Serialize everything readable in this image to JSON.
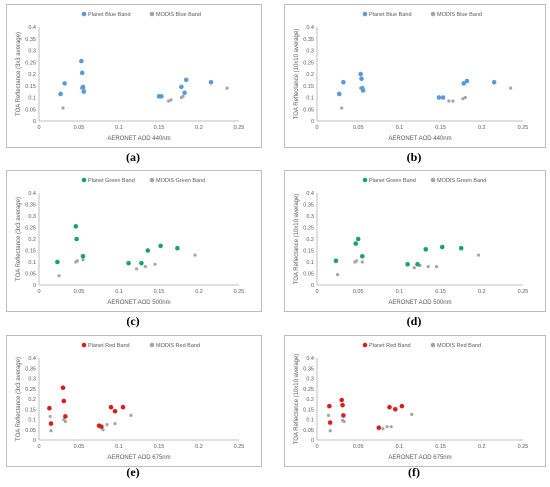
{
  "colors": {
    "blue": "#5b9bd5",
    "green": "#19a463",
    "red": "#d61f1f",
    "grey": "#a5a5a5",
    "axis": "#bfbfbf",
    "text": "#595959"
  },
  "panels": [
    {
      "sub_label": "(a)",
      "ylabel": "TOA Reflectance (3x3 average)",
      "xlabel": "AERONET AOD 440nm",
      "legend": [
        "Planet Blue Band",
        "MODIS Blue Band"
      ]
    },
    {
      "sub_label": "(b)",
      "ylabel": "TOA Reflectance (10x10 average)",
      "xlabel": "AERONET AOD 440nm",
      "legend": [
        "Planet Blue Band",
        "MODIS Blue Band"
      ]
    },
    {
      "sub_label": "(c)",
      "ylabel": "TOA Reflectance (3x3 average)",
      "xlabel": "AERONET AOD 500nm",
      "legend": [
        "Planet Green Band",
        "MODIS Green Band"
      ]
    },
    {
      "sub_label": "(d)",
      "ylabel": "TOA Reflectance (10x10 average)",
      "xlabel": "AERONET AOD 500nm",
      "legend": [
        "Planet Green Band",
        "MODIS Green Band"
      ]
    },
    {
      "sub_label": "(e)",
      "ylabel": "TOA Reflectance (3x3 average)",
      "xlabel": "AERONET AOD 675nm",
      "legend": [
        "Planet Red Band",
        "MODIS Red Band"
      ]
    },
    {
      "sub_label": "(f)",
      "ylabel": "TOA Reflectance (10x10 average)",
      "xlabel": "AERONET AOD 675nm",
      "legend": [
        "Planet Red Band",
        "MODIS Red Band"
      ]
    }
  ],
  "chart_data": [
    {
      "type": "scatter",
      "title": "",
      "xlabel": "AERONET AOD 440nm",
      "ylabel": "TOA Reflectance (3x3 average)",
      "xlim": [
        0,
        0.25
      ],
      "ylim": [
        0,
        0.4
      ],
      "xticks": [
        "0",
        "0.05",
        "0.1",
        "0.15",
        "0.2",
        "0.25"
      ],
      "yticks": [
        "0",
        "0.05",
        "0.1",
        "0.15",
        "0.2",
        "0.25",
        "0.3",
        "0.35",
        "0.4"
      ],
      "grid": false,
      "legend_position": "top",
      "series": [
        {
          "name": "Planet Blue Band",
          "color": "#5b9bd5",
          "x": [
            0.027,
            0.032,
            0.053,
            0.054,
            0.055,
            0.056,
            0.15,
            0.153,
            0.178,
            0.182,
            0.184,
            0.215
          ],
          "y": [
            0.115,
            0.16,
            0.255,
            0.205,
            0.145,
            0.125,
            0.105,
            0.105,
            0.145,
            0.12,
            0.175,
            0.165
          ]
        },
        {
          "name": "MODIS Blue Band",
          "color": "#a5a5a5",
          "x": [
            0.03,
            0.053,
            0.056,
            0.162,
            0.165,
            0.178,
            0.18,
            0.235
          ],
          "y": [
            0.055,
            0.14,
            0.135,
            0.085,
            0.09,
            0.1,
            0.105,
            0.14
          ]
        }
      ]
    },
    {
      "type": "scatter",
      "title": "",
      "xlabel": "AERONET AOD 440nm",
      "ylabel": "TOA Reflectance (10x10 average)",
      "xlim": [
        0,
        0.25
      ],
      "ylim": [
        0,
        0.4
      ],
      "xticks": [
        "0",
        "0.05",
        "0.1",
        "0.15",
        "0.2",
        "0.25"
      ],
      "yticks": [
        "0",
        "0.05",
        "0.1",
        "0.15",
        "0.2",
        "0.25",
        "0.3",
        "0.35",
        "0.4"
      ],
      "grid": false,
      "legend_position": "top",
      "series": [
        {
          "name": "Planet Blue Band",
          "color": "#5b9bd5",
          "x": [
            0.027,
            0.032,
            0.053,
            0.054,
            0.055,
            0.056,
            0.148,
            0.153,
            0.178,
            0.182,
            0.215
          ],
          "y": [
            0.115,
            0.165,
            0.2,
            0.18,
            0.14,
            0.13,
            0.1,
            0.1,
            0.16,
            0.17,
            0.165
          ]
        },
        {
          "name": "MODIS Blue Band",
          "color": "#a5a5a5",
          "x": [
            0.03,
            0.053,
            0.056,
            0.16,
            0.165,
            0.177,
            0.18,
            0.235
          ],
          "y": [
            0.055,
            0.14,
            0.135,
            0.085,
            0.085,
            0.095,
            0.1,
            0.14
          ]
        }
      ]
    },
    {
      "type": "scatter",
      "title": "",
      "xlabel": "AERONET AOD 500nm",
      "ylabel": "TOA Reflectance (3x3 average)",
      "xlim": [
        0,
        0.25
      ],
      "ylim": [
        0,
        0.4
      ],
      "xticks": [
        "0",
        "0.05",
        "0.1",
        "0.15",
        "0.2",
        "0.25"
      ],
      "yticks": [
        "0",
        "0.05",
        "0.1",
        "0.15",
        "0.2",
        "0.25",
        "0.3",
        "0.35",
        "0.4"
      ],
      "grid": false,
      "legend_position": "top",
      "series": [
        {
          "name": "Planet Green Band",
          "color": "#19a463",
          "x": [
            0.023,
            0.046,
            0.047,
            0.055,
            0.112,
            0.128,
            0.136,
            0.152,
            0.173
          ],
          "y": [
            0.1,
            0.255,
            0.2,
            0.125,
            0.095,
            0.095,
            0.15,
            0.17,
            0.16
          ]
        },
        {
          "name": "MODIS Green Band",
          "color": "#a5a5a5",
          "x": [
            0.025,
            0.046,
            0.048,
            0.055,
            0.122,
            0.133,
            0.145,
            0.195
          ],
          "y": [
            0.04,
            0.1,
            0.105,
            0.11,
            0.07,
            0.08,
            0.09,
            0.13
          ]
        }
      ]
    },
    {
      "type": "scatter",
      "title": "",
      "xlabel": "AERONET AOD 500nm",
      "ylabel": "TOA Reflectance (10x10 average)",
      "xlim": [
        0,
        0.25
      ],
      "ylim": [
        0,
        0.4
      ],
      "xticks": [
        "0",
        "0.05",
        "0.1",
        "0.15",
        "0.2",
        "0.25"
      ],
      "yticks": [
        "0",
        "0.05",
        "0.1",
        "0.15",
        "0.2",
        "0.25",
        "0.3",
        "0.35",
        "0.4"
      ],
      "grid": false,
      "legend_position": "top",
      "series": [
        {
          "name": "Planet Green Band",
          "color": "#19a463",
          "x": [
            0.023,
            0.047,
            0.05,
            0.055,
            0.11,
            0.122,
            0.132,
            0.152,
            0.175
          ],
          "y": [
            0.105,
            0.18,
            0.2,
            0.125,
            0.09,
            0.09,
            0.155,
            0.165,
            0.16
          ]
        },
        {
          "name": "MODIS Green Band",
          "color": "#a5a5a5",
          "x": [
            0.025,
            0.046,
            0.048,
            0.055,
            0.118,
            0.125,
            0.135,
            0.145,
            0.196
          ],
          "y": [
            0.045,
            0.1,
            0.105,
            0.1,
            0.075,
            0.085,
            0.08,
            0.08,
            0.13
          ]
        }
      ]
    },
    {
      "type": "scatter",
      "title": "",
      "xlabel": "AERONET AOD 675nm",
      "ylabel": "TOA Reflectance (3x3 average)",
      "xlim": [
        0,
        0.25
      ],
      "ylim": [
        0,
        0.4
      ],
      "xticks": [
        "0",
        "0.05",
        "0.1",
        "0.15",
        "0.2",
        "0.25"
      ],
      "yticks": [
        "0",
        "0.05",
        "0.1",
        "0.15",
        "0.2",
        "0.25",
        "0.3",
        "0.35",
        "0.4"
      ],
      "grid": false,
      "legend_position": "top",
      "series": [
        {
          "name": "Planet Red Band",
          "color": "#d61f1f",
          "x": [
            0.013,
            0.015,
            0.03,
            0.031,
            0.033,
            0.075,
            0.078,
            0.09,
            0.095,
            0.105
          ],
          "y": [
            0.155,
            0.08,
            0.255,
            0.19,
            0.115,
            0.07,
            0.065,
            0.16,
            0.14,
            0.16
          ]
        },
        {
          "name": "MODIS Red Band",
          "color": "#a5a5a5",
          "x": [
            0.014,
            0.015,
            0.031,
            0.033,
            0.08,
            0.085,
            0.095,
            0.115
          ],
          "y": [
            0.115,
            0.045,
            0.1,
            0.09,
            0.05,
            0.075,
            0.08,
            0.12
          ]
        }
      ]
    },
    {
      "type": "scatter",
      "title": "",
      "xlabel": "AERONET AOD 675nm",
      "ylabel": "TOA Reflectance (10x10 average)",
      "xlim": [
        0,
        0.25
      ],
      "ylim": [
        0,
        0.4
      ],
      "xticks": [
        "0",
        "0.05",
        "0.1",
        "0.15",
        "0.2",
        "0.25"
      ],
      "yticks": [
        "0",
        "0.05",
        "0.1",
        "0.15",
        "0.2",
        "0.25",
        "0.3",
        "0.35",
        "0.4"
      ],
      "grid": false,
      "legend_position": "top",
      "series": [
        {
          "name": "Planet Red Band",
          "color": "#d61f1f",
          "x": [
            0.015,
            0.016,
            0.03,
            0.031,
            0.032,
            0.075,
            0.088,
            0.095,
            0.103
          ],
          "y": [
            0.165,
            0.085,
            0.195,
            0.17,
            0.12,
            0.06,
            0.16,
            0.15,
            0.165
          ]
        },
        {
          "name": "MODIS Red Band",
          "color": "#a5a5a5",
          "x": [
            0.014,
            0.016,
            0.031,
            0.033,
            0.08,
            0.085,
            0.09,
            0.115
          ],
          "y": [
            0.12,
            0.045,
            0.095,
            0.09,
            0.055,
            0.065,
            0.065,
            0.125
          ]
        }
      ]
    }
  ]
}
